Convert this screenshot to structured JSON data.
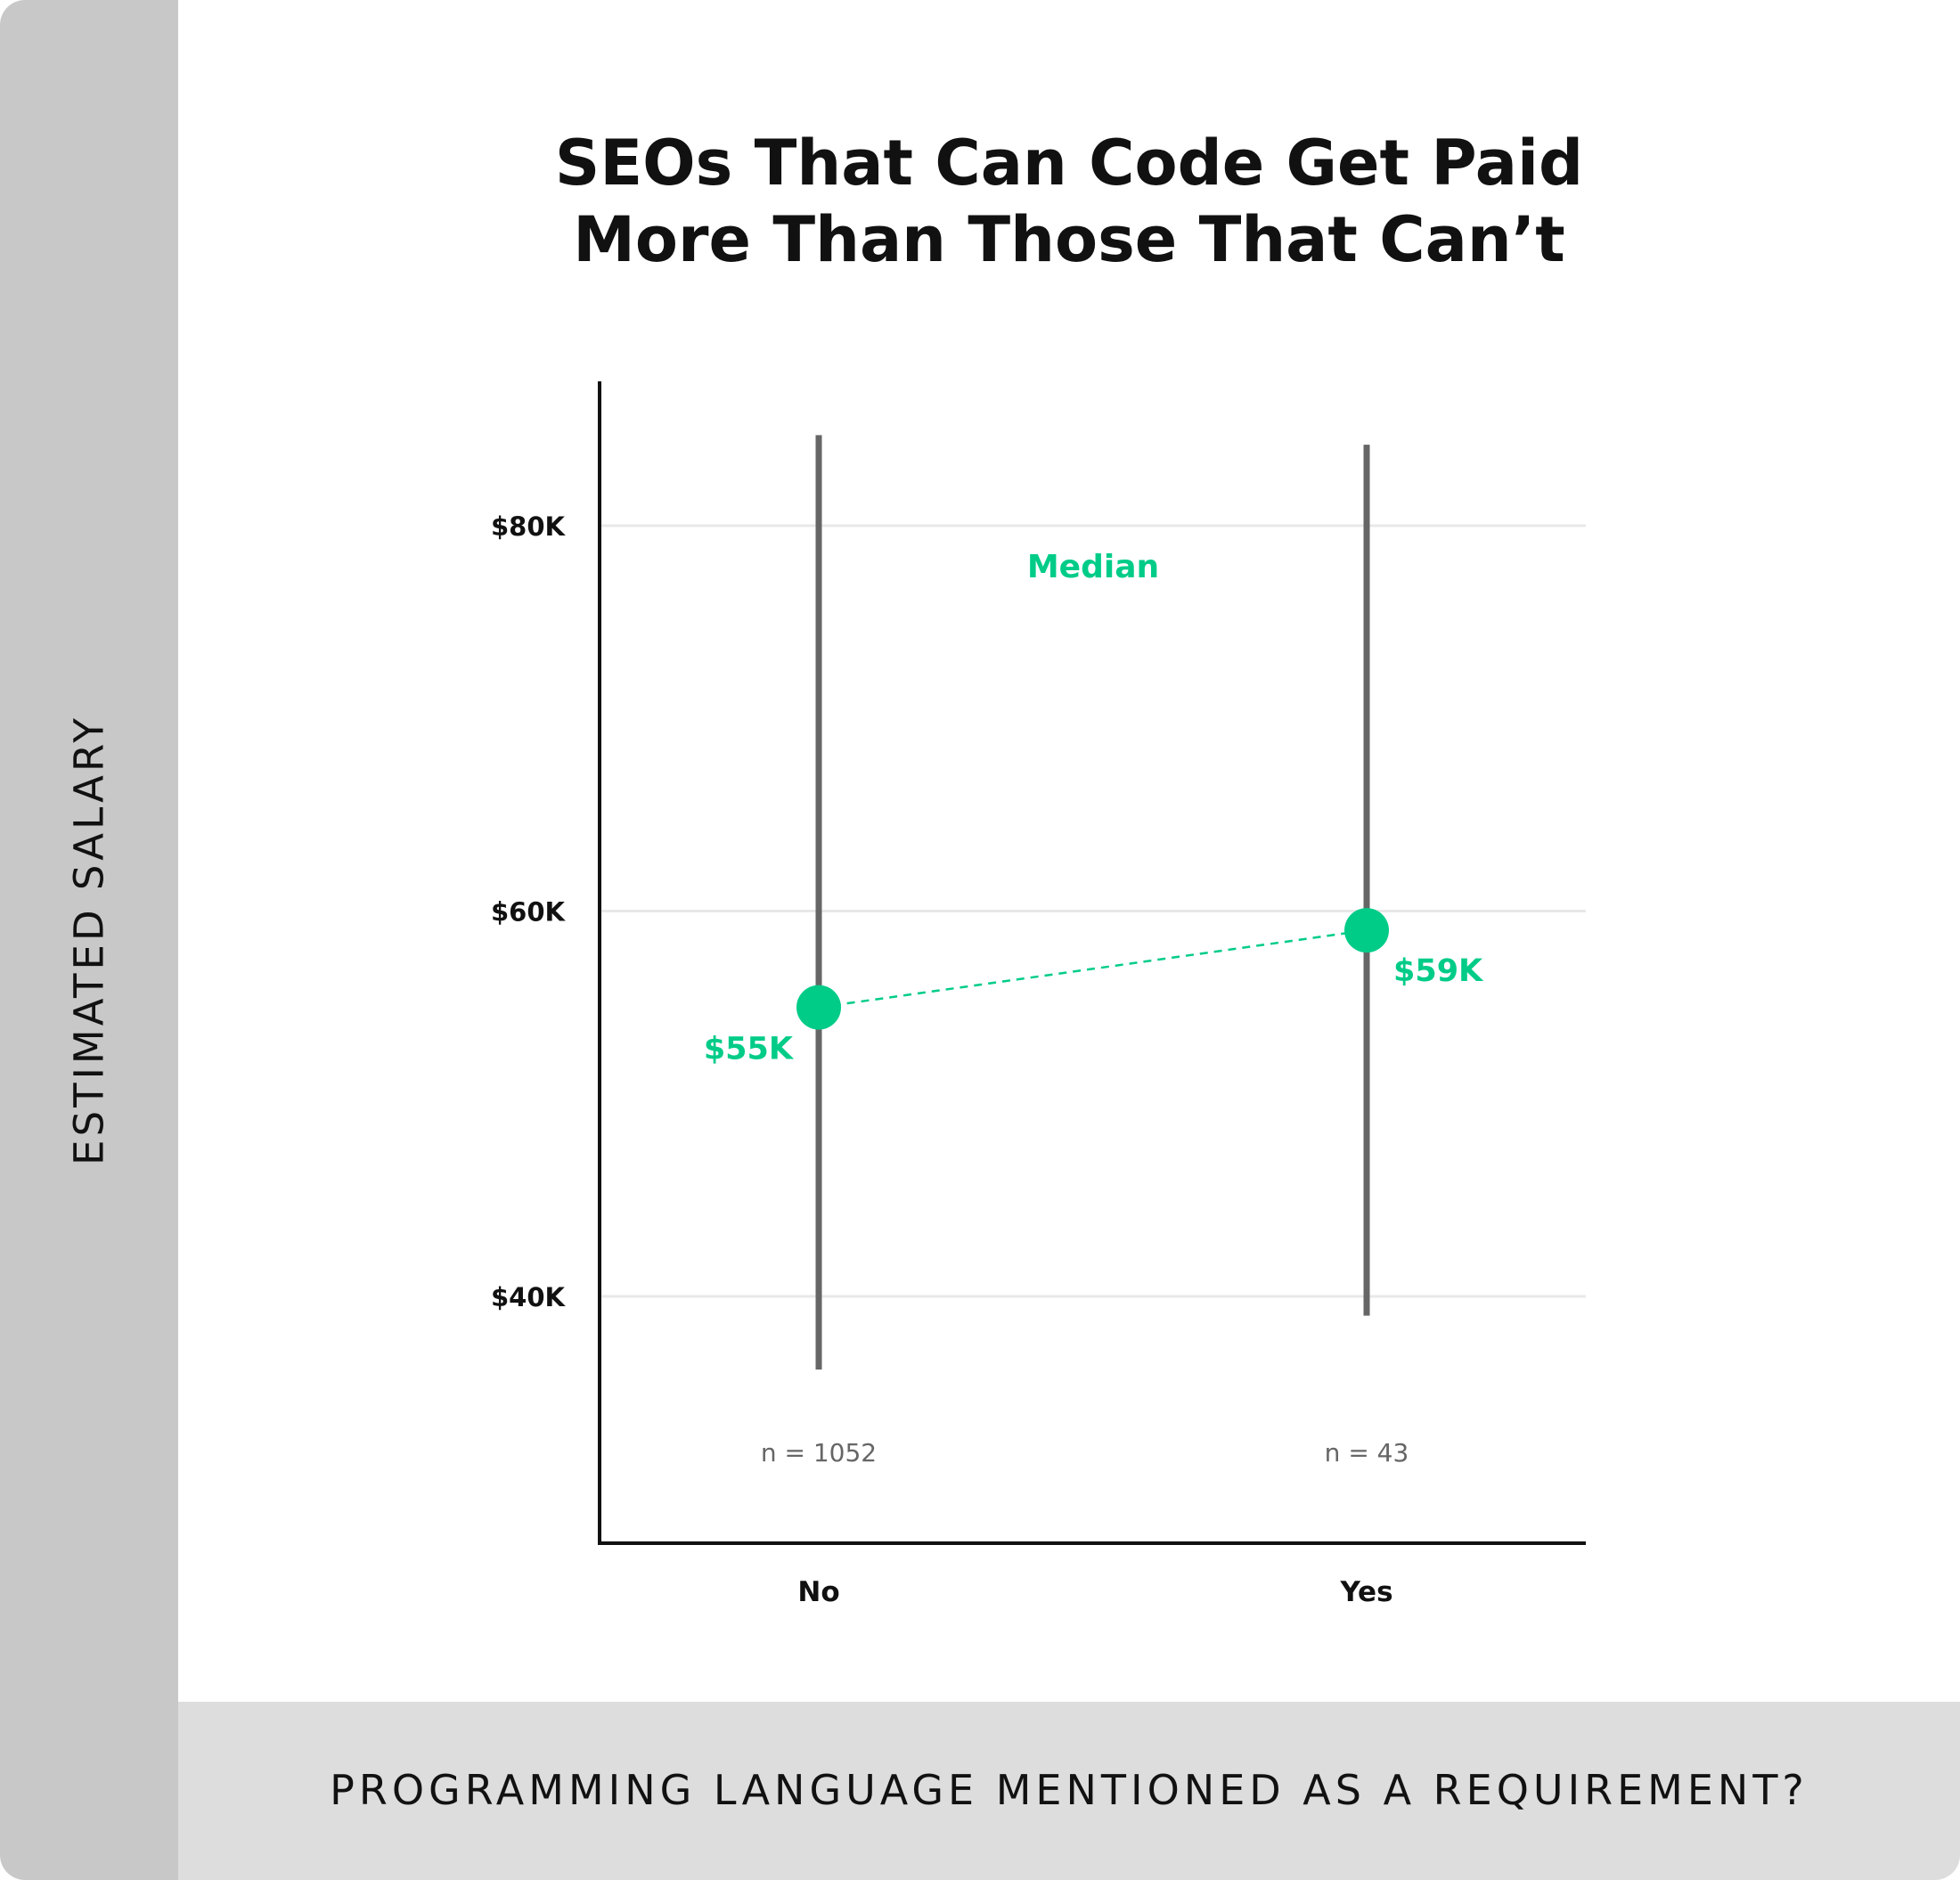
{
  "chart_data": {
    "type": "scatter",
    "title_line1": "SEOs That Can Code Get Paid",
    "title_line2": "More Than Those That Can’t",
    "xlabel": "PROGRAMMING LANGUAGE MENTIONED AS A REQUIREMENT?",
    "ylabel": "ESTIMATED SALARY",
    "categories": [
      "No",
      "Yes"
    ],
    "y_ticks": [
      {
        "value": 40000,
        "label": "$40K"
      },
      {
        "value": 60000,
        "label": "$60K"
      },
      {
        "value": 80000,
        "label": "$80K"
      }
    ],
    "ylim": [
      27000,
      88000
    ],
    "series": [
      {
        "name": "Median",
        "values": [
          55000,
          59000
        ],
        "labels": [
          "$55K",
          "$59K"
        ]
      }
    ],
    "ranges": [
      {
        "category": "No",
        "low": 36200,
        "high": 84700
      },
      {
        "category": "Yes",
        "low": 39000,
        "high": 84200
      }
    ],
    "sample_sizes": [
      "n = 1052",
      "n = 43"
    ],
    "grid": true,
    "colors": {
      "median": "#00cc88",
      "range_line": "#666666",
      "axis": "#111111",
      "grid": "#e8e8e8",
      "ylabel_band": "#c8c8c8",
      "xlabel_band": "#dddddd"
    }
  }
}
